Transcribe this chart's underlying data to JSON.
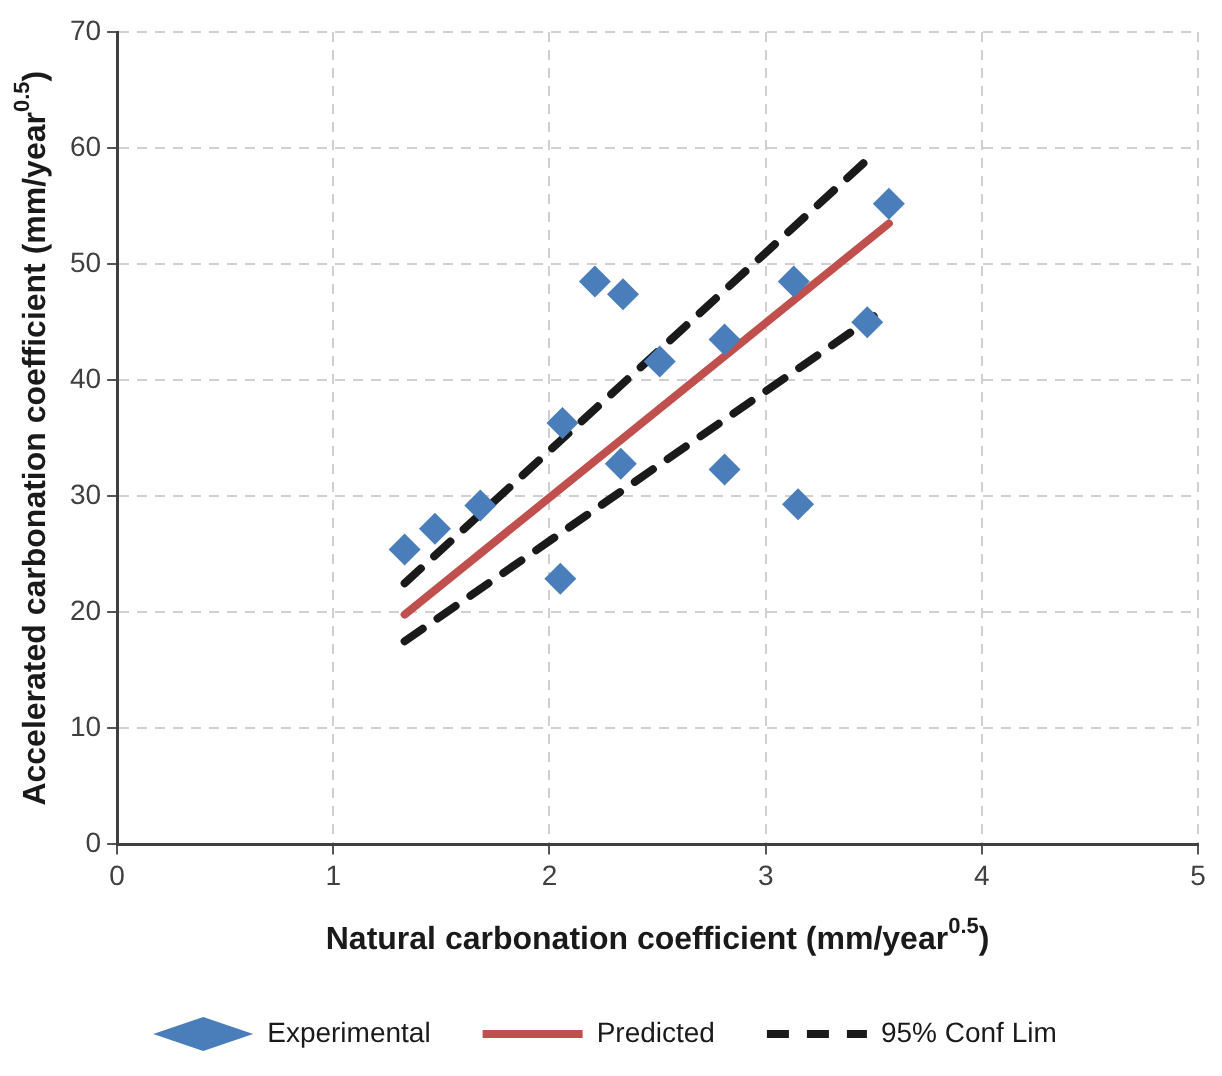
{
  "chart_data": {
    "type": "scatter",
    "xlabel": "Natural carbonation coefficient (mm/year$^{0.5}$)",
    "ylabel": "Accelerated carbonation coefficient (mm/year$^{0.5}$)",
    "xlim": [
      0,
      5
    ],
    "xticks": [
      0,
      1,
      2,
      3,
      4,
      5
    ],
    "ylim": [
      0,
      70
    ],
    "yticks": [
      0,
      10,
      20,
      30,
      40,
      50,
      60,
      70
    ],
    "grid": true,
    "legend": "bottom",
    "series": [
      {
        "name": "Experimental",
        "marker": "diamond",
        "color": "#4a7ebb",
        "x": [
          1.33,
          1.47,
          1.68,
          2.05,
          2.06,
          2.21,
          2.34,
          2.33,
          2.51,
          2.81,
          2.81,
          3.13,
          3.15,
          3.47,
          3.57
        ],
        "values": [
          25.4,
          27.2,
          29.2,
          22.9,
          36.3,
          48.5,
          47.4,
          32.8,
          41.6,
          43.5,
          32.3,
          48.5,
          29.3,
          45,
          55.2
        ]
      },
      {
        "name": "Predicted",
        "type": "line",
        "marker": "none",
        "line_style": "solid",
        "color": "#c0504d",
        "x": [
          1.33,
          3.57
        ],
        "values": [
          19.8,
          53.5
        ]
      },
      {
        "name": "95% Conf Lim",
        "type": "line",
        "marker": "none",
        "line_style": "dashed",
        "color": "#1a1a1a",
        "x": [
          1.33,
          3.5
        ],
        "values": [
          22.5,
          59.5
        ]
      },
      {
        "type": "line",
        "marker": "none",
        "line_style": "dashed",
        "color": "#1a1a1a",
        "x": [
          1.33,
          3.5
        ],
        "values": [
          17.5,
          45.5
        ]
      }
    ]
  }
}
